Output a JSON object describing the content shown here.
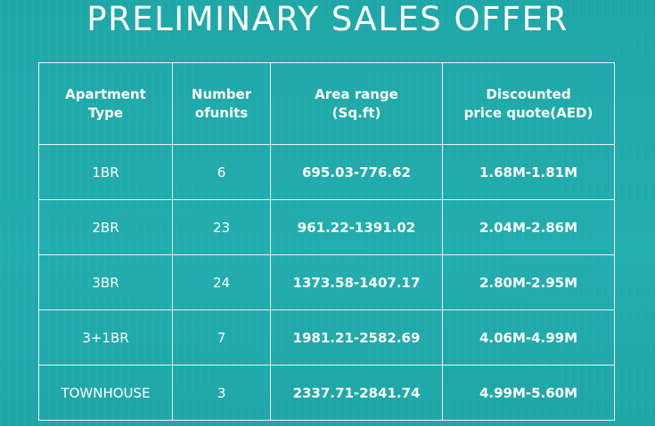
{
  "title": "PRELIMINARY SALES OFFER",
  "table": {
    "headers": [
      {
        "line1": "Apartment",
        "line2": "Type"
      },
      {
        "line1": "Number",
        "line2": "ofunits"
      },
      {
        "line1": "Area range",
        "line2": "(Sq.ft)"
      },
      {
        "line1": "Discounted",
        "line2": "price quote(AED)"
      }
    ],
    "rows": [
      {
        "type": "1BR",
        "units": "6",
        "area": "695.03-776.62",
        "price": "1.68M-1.81M"
      },
      {
        "type": "2BR",
        "units": "23",
        "area": "961.22-1391.02",
        "price": "2.04M-2.86M"
      },
      {
        "type": "3BR",
        "units": "24",
        "area": "1373.58-1407.17",
        "price": "2.80M-2.95M"
      },
      {
        "type": "3+1BR",
        "units": "7",
        "area": "1981.21-2582.69",
        "price": "4.06M-4.99M"
      },
      {
        "type": "TOWNHOUSE",
        "units": "3",
        "area": "2337.71-2841.74",
        "price": "4.99M-5.60M"
      }
    ]
  },
  "colors": {
    "background": "#20aaab",
    "text": "#ffffff",
    "border": "#ffffff"
  }
}
